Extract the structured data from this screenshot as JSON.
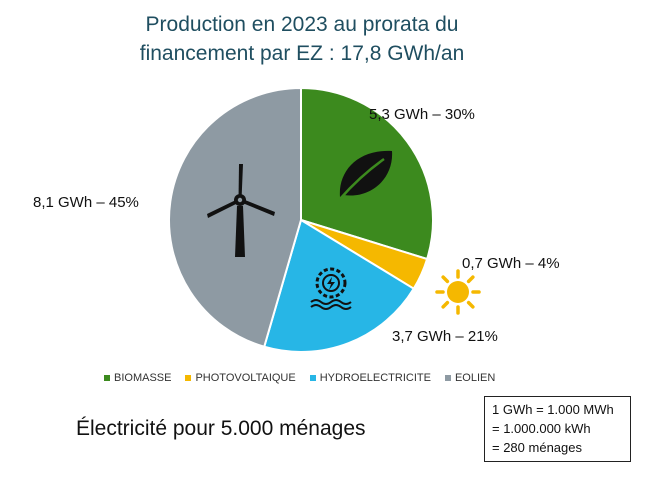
{
  "title": {
    "line1": "Production en 2023 au prorata du",
    "line2": "financement par EZ : 17,8 GWh/an"
  },
  "chart_data": {
    "type": "pie",
    "title": "Production en 2023 au prorata du financement par EZ : 17,8 GWh/an",
    "slices": [
      {
        "category": "BIOMASSE",
        "gwh": 5.3,
        "percent": 30,
        "label": "5,3 GWh – 30%",
        "color": "#3c8a1e",
        "icon": "leaf-icon"
      },
      {
        "category": "PHOTOVOLTAIQUE",
        "gwh": 0.7,
        "percent": 4,
        "label": "0,7 GWh – 4%",
        "color": "#f5b800",
        "icon": "sun-icon"
      },
      {
        "category": "HYDROELECTRICITE",
        "gwh": 3.7,
        "percent": 21,
        "label": "3,7 GWh – 21%",
        "color": "#27b6e6",
        "icon": "hydro-turbine-icon"
      },
      {
        "category": "EOLIEN",
        "gwh": 8.1,
        "percent": 45,
        "label": "8,1 GWh – 45%",
        "color": "#8e9aa3",
        "icon": "wind-turbine-icon"
      }
    ],
    "legend_position": "bottom"
  },
  "households": "Électricité pour 5.000 ménages",
  "conversion": {
    "line1": "1 GWh = 1.000 MWh",
    "line2": "= 1.000.000 kWh",
    "line3": "= 280 ménages"
  },
  "colors": {
    "title": "#1f4e60",
    "slice_border": "#ffffff"
  }
}
